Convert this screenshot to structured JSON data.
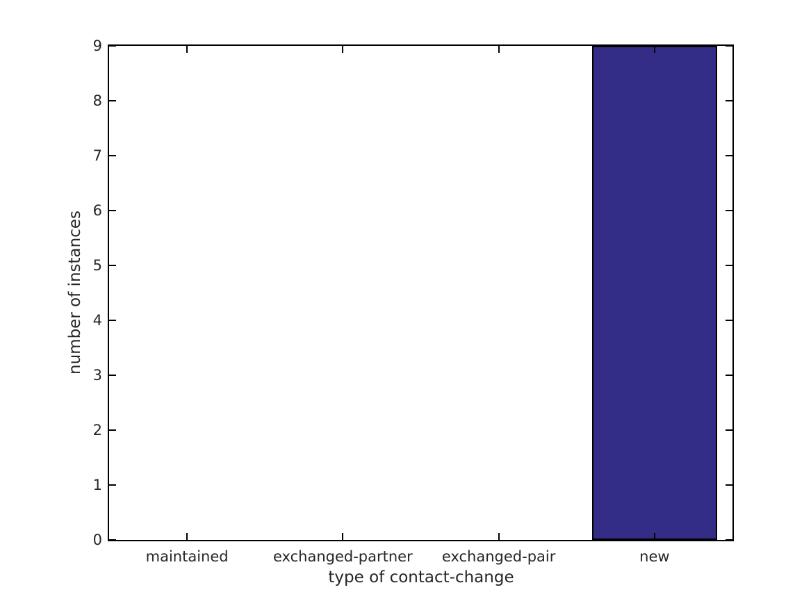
{
  "figure": {
    "background_color": "#ffffff"
  },
  "chart_data": {
    "type": "bar",
    "title": "",
    "categories": [
      "maintained",
      "exchanged-partner",
      "exchanged-pair",
      "new"
    ],
    "values": [
      0,
      0,
      0,
      9
    ],
    "xlabel": "type of contact-change",
    "ylabel": "number of instances",
    "ylim": [
      0,
      9
    ],
    "yticks": [
      0,
      1,
      2,
      3,
      4,
      5,
      6,
      7,
      8,
      9
    ],
    "bar_color": "#342d87",
    "bar_edge_color": "#000000",
    "axis_color": "#000000",
    "text_color": "#262626",
    "bar_width_fraction": 0.8,
    "grid": false,
    "legend": null,
    "tick_direction": "in",
    "ticks_mirrored_top_right": true
  }
}
